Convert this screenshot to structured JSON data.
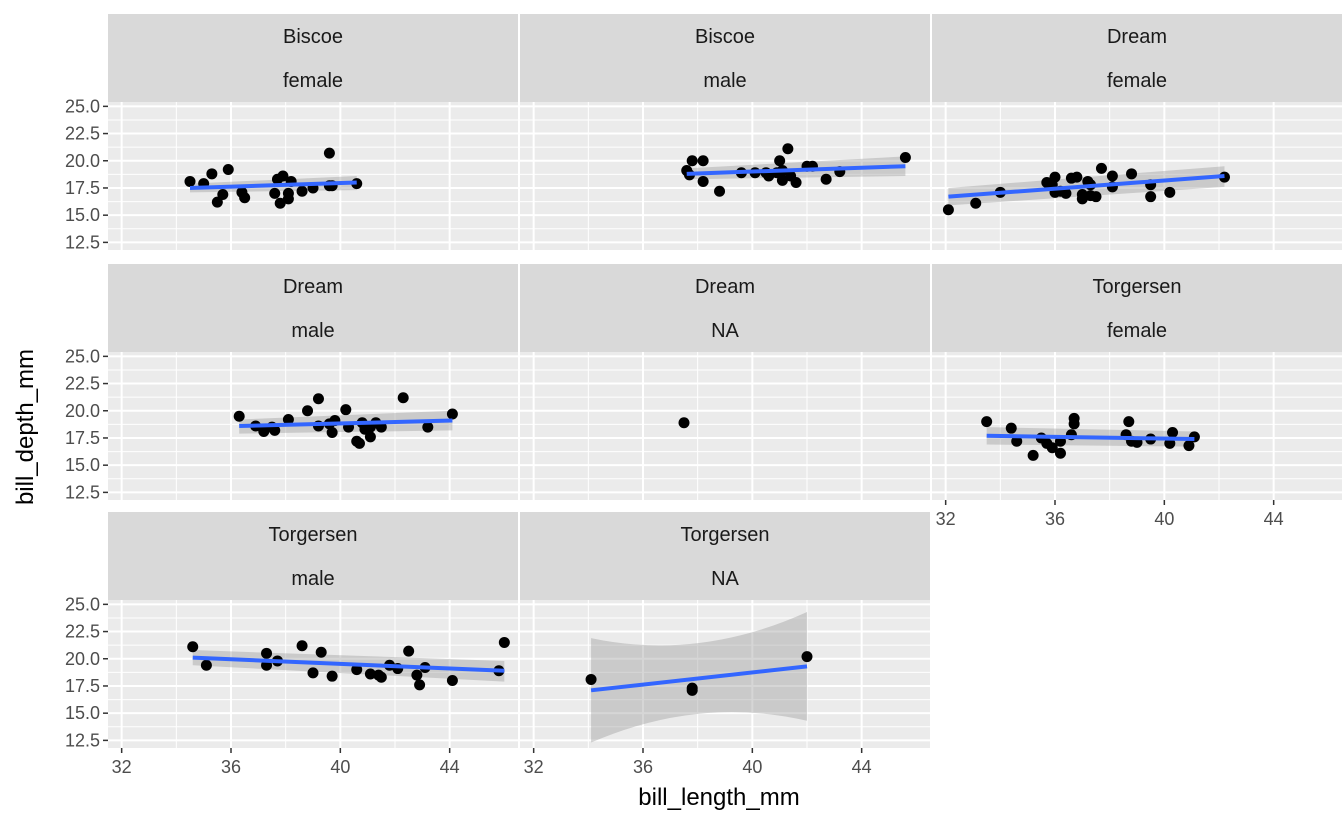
{
  "chart_data": {
    "type": "scatter",
    "xlabel": "bill_length_mm",
    "ylabel": "bill_depth_mm",
    "xlim": [
      31.5,
      46.5
    ],
    "ylim": [
      11.8,
      25.4
    ],
    "x_ticks": [
      "32",
      "36",
      "40",
      "44"
    ],
    "y_ticks": [
      "12.5",
      "15.0",
      "17.5",
      "20.0",
      "22.5",
      "25.0"
    ],
    "grid": true,
    "legend": "none",
    "facet_vars": [
      "island",
      "sex"
    ],
    "colors": {
      "points": "#000000",
      "fit_line": "#3366FF",
      "ribbon": "#999999",
      "panel_bg": "#EBEBEB",
      "strip_bg": "#D9D9D9",
      "grid": "#FFFFFF"
    },
    "panels": [
      {
        "strip": [
          "Biscoe",
          "female"
        ],
        "points": [
          [
            34.5,
            18.1
          ],
          [
            35.0,
            17.9
          ],
          [
            35.3,
            18.8
          ],
          [
            35.5,
            16.2
          ],
          [
            35.7,
            16.9
          ],
          [
            35.9,
            19.2
          ],
          [
            36.4,
            17.1
          ],
          [
            36.5,
            16.6
          ],
          [
            37.6,
            17.0
          ],
          [
            37.7,
            18.3
          ],
          [
            37.8,
            16.1
          ],
          [
            37.9,
            18.6
          ],
          [
            38.1,
            17.0
          ],
          [
            38.1,
            16.5
          ],
          [
            38.2,
            18.1
          ],
          [
            38.6,
            17.2
          ],
          [
            39.0,
            17.5
          ],
          [
            39.6,
            17.7
          ],
          [
            39.6,
            20.7
          ],
          [
            39.7,
            17.7
          ],
          [
            40.6,
            17.9
          ]
        ],
        "fit": {
          "x": [
            34.5,
            40.6
          ],
          "y": [
            17.5,
            18.0
          ]
        },
        "band": {
          "upper": [
            17.9,
            18.6
          ],
          "lower": [
            17.1,
            17.3
          ]
        }
      },
      {
        "strip": [
          "Biscoe",
          "male"
        ],
        "points": [
          [
            37.6,
            19.1
          ],
          [
            37.7,
            18.7
          ],
          [
            37.8,
            20.0
          ],
          [
            38.2,
            20.0
          ],
          [
            38.2,
            18.1
          ],
          [
            38.8,
            17.2
          ],
          [
            39.6,
            18.9
          ],
          [
            40.1,
            18.9
          ],
          [
            40.5,
            18.9
          ],
          [
            40.6,
            18.6
          ],
          [
            40.9,
            18.9
          ],
          [
            41.0,
            20.0
          ],
          [
            41.1,
            18.2
          ],
          [
            41.1,
            19.1
          ],
          [
            41.3,
            21.1
          ],
          [
            41.4,
            18.6
          ],
          [
            41.6,
            18.0
          ],
          [
            42.0,
            19.5
          ],
          [
            42.2,
            19.5
          ],
          [
            42.7,
            18.3
          ],
          [
            43.2,
            19.0
          ],
          [
            45.6,
            20.3
          ]
        ],
        "fit": {
          "x": [
            37.6,
            45.6
          ],
          "y": [
            18.8,
            19.5
          ]
        },
        "band": {
          "upper": [
            19.3,
            20.4
          ],
          "lower": [
            18.3,
            18.6
          ]
        }
      },
      {
        "strip": [
          "Dream",
          "female"
        ],
        "points": [
          [
            32.1,
            15.5
          ],
          [
            33.1,
            16.1
          ],
          [
            34.0,
            17.1
          ],
          [
            35.7,
            18.0
          ],
          [
            35.9,
            17.8
          ],
          [
            36.0,
            18.5
          ],
          [
            36.0,
            17.1
          ],
          [
            36.2,
            17.2
          ],
          [
            36.4,
            17.0
          ],
          [
            36.6,
            18.4
          ],
          [
            36.8,
            18.5
          ],
          [
            37.0,
            16.9
          ],
          [
            37.0,
            16.5
          ],
          [
            37.2,
            18.1
          ],
          [
            37.3,
            16.8
          ],
          [
            37.3,
            17.8
          ],
          [
            37.5,
            16.7
          ],
          [
            37.7,
            19.3
          ],
          [
            38.1,
            18.6
          ],
          [
            38.1,
            17.6
          ],
          [
            38.8,
            18.8
          ],
          [
            39.5,
            17.8
          ],
          [
            39.5,
            16.7
          ],
          [
            40.2,
            17.1
          ],
          [
            42.2,
            18.5
          ]
        ],
        "fit": {
          "x": [
            32.1,
            42.2
          ],
          "y": [
            16.7,
            18.6
          ]
        },
        "band": {
          "upper": [
            17.5,
            19.5
          ],
          "lower": [
            15.9,
            17.6
          ]
        }
      },
      {
        "strip": [
          "Dream",
          "male"
        ],
        "points": [
          [
            36.3,
            19.5
          ],
          [
            36.9,
            18.6
          ],
          [
            37.2,
            18.1
          ],
          [
            37.5,
            18.5
          ],
          [
            37.6,
            18.2
          ],
          [
            38.1,
            19.2
          ],
          [
            38.8,
            20.0
          ],
          [
            39.2,
            21.1
          ],
          [
            39.2,
            18.6
          ],
          [
            39.6,
            18.8
          ],
          [
            39.7,
            18.0
          ],
          [
            39.8,
            19.1
          ],
          [
            40.2,
            20.1
          ],
          [
            40.3,
            18.5
          ],
          [
            40.6,
            17.2
          ],
          [
            40.7,
            17.0
          ],
          [
            40.8,
            18.9
          ],
          [
            40.9,
            18.3
          ],
          [
            41.1,
            17.6
          ],
          [
            41.1,
            18.5
          ],
          [
            41.3,
            18.9
          ],
          [
            41.5,
            18.5
          ],
          [
            42.3,
            21.2
          ],
          [
            43.2,
            18.5
          ],
          [
            44.1,
            19.7
          ]
        ],
        "fit": {
          "x": [
            36.3,
            44.1
          ],
          "y": [
            18.6,
            19.1
          ]
        },
        "band": {
          "upper": [
            19.2,
            20.0
          ],
          "lower": [
            17.9,
            18.2
          ]
        }
      },
      {
        "strip": [
          "Dream",
          "NA"
        ],
        "points": [
          [
            37.5,
            18.9
          ]
        ]
      },
      {
        "strip": [
          "Torgersen",
          "female"
        ],
        "points": [
          [
            33.5,
            19.0
          ],
          [
            34.4,
            18.4
          ],
          [
            34.6,
            17.2
          ],
          [
            35.2,
            15.9
          ],
          [
            35.5,
            17.5
          ],
          [
            35.7,
            17.0
          ],
          [
            35.9,
            16.6
          ],
          [
            36.2,
            17.2
          ],
          [
            36.2,
            16.1
          ],
          [
            36.6,
            17.8
          ],
          [
            36.7,
            19.3
          ],
          [
            36.7,
            18.8
          ],
          [
            38.6,
            17.8
          ],
          [
            38.7,
            19.0
          ],
          [
            38.8,
            17.2
          ],
          [
            39.0,
            17.1
          ],
          [
            39.5,
            17.4
          ],
          [
            40.3,
            18.0
          ],
          [
            40.2,
            17.0
          ],
          [
            40.9,
            16.8
          ],
          [
            41.1,
            17.6
          ]
        ],
        "fit": {
          "x": [
            33.5,
            41.1
          ],
          "y": [
            17.7,
            17.4
          ]
        },
        "band": {
          "upper": [
            18.5,
            18.1
          ],
          "lower": [
            16.9,
            16.7
          ]
        }
      },
      {
        "strip": [
          "Torgersen",
          "male"
        ],
        "points": [
          [
            34.6,
            21.1
          ],
          [
            35.1,
            19.4
          ],
          [
            37.3,
            19.4
          ],
          [
            37.3,
            20.5
          ],
          [
            37.7,
            19.8
          ],
          [
            38.6,
            21.2
          ],
          [
            39.0,
            18.7
          ],
          [
            39.3,
            20.6
          ],
          [
            39.7,
            18.4
          ],
          [
            40.6,
            19.0
          ],
          [
            41.1,
            18.6
          ],
          [
            41.4,
            18.5
          ],
          [
            41.5,
            18.3
          ],
          [
            41.8,
            19.4
          ],
          [
            42.1,
            19.1
          ],
          [
            42.5,
            20.7
          ],
          [
            42.8,
            18.5
          ],
          [
            42.9,
            17.6
          ],
          [
            43.1,
            19.2
          ],
          [
            44.1,
            18.0
          ],
          [
            45.8,
            18.9
          ],
          [
            46.0,
            21.5
          ]
        ],
        "fit": {
          "x": [
            34.6,
            46.0
          ],
          "y": [
            20.1,
            18.9
          ]
        },
        "band": {
          "upper": [
            20.8,
            19.8
          ],
          "lower": [
            19.4,
            17.9
          ]
        }
      },
      {
        "strip": [
          "Torgersen",
          "NA"
        ],
        "points": [
          [
            34.1,
            18.1
          ],
          [
            37.8,
            17.1
          ],
          [
            37.8,
            17.3
          ],
          [
            42.0,
            20.2
          ]
        ],
        "fit": {
          "x": [
            34.1,
            42.0
          ],
          "y": [
            17.1,
            19.3
          ]
        },
        "band": {
          "upper": [
            21.9,
            24.3
          ],
          "lower": [
            12.3,
            14.3
          ]
        }
      }
    ]
  }
}
